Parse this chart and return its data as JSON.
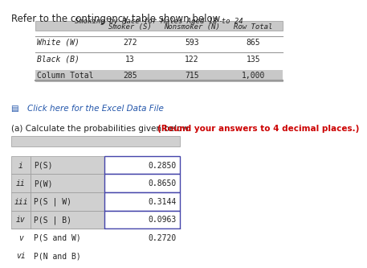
{
  "title_text": "Refer to the contingency table shown below.",
  "contingency_title": "Smoking by Race for Males Aged 18 to 24",
  "cont_headers": [
    "",
    "Smoker (S)",
    "Nonsmoker (N)",
    "Row Total"
  ],
  "cont_rows": [
    [
      "White (W)",
      "272",
      "593",
      "865"
    ],
    [
      "Black (B)",
      "13",
      "122",
      "135"
    ],
    [
      "Column Total",
      "285",
      "715",
      "1,000"
    ]
  ],
  "link_text": "Click here for the Excel Data File",
  "part_a_text": "(a) Calculate the probabilities given below: ",
  "part_a_bold": "(Round your answers to 4 decimal places.)",
  "prob_rows": [
    [
      "i",
      "P(S)",
      "0.2850"
    ],
    [
      "ii",
      "P(W)",
      "0.8650"
    ],
    [
      "iii",
      "P(S | W)",
      "0.3144"
    ],
    [
      "iv",
      "P(S | B)",
      "0.0963"
    ],
    [
      "v",
      "P(S and W)",
      "0.2720"
    ],
    [
      "vi",
      "P(N and B)",
      ""
    ]
  ],
  "bg_color": "#ffffff",
  "table_header_bg": "#c8c8c8",
  "table_border_color": "#999999",
  "link_color": "#2255aa",
  "bold_red_color": "#cc0000",
  "text_color": "#222222",
  "prob_label_bg": "#d0d0d0",
  "prob_border_color": "#4444aa"
}
